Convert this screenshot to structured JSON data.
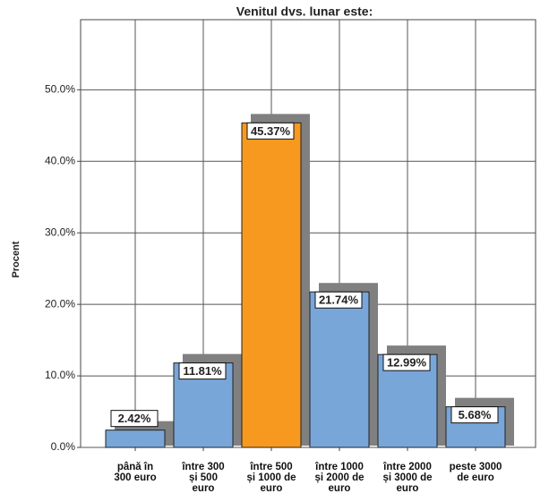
{
  "chart_data": {
    "type": "bar",
    "title": "Venitul dvs. lunar este:",
    "y_label": "Procent",
    "categories": [
      "până în\n300 euro",
      "între 300\nși 500\neuro",
      "între 500\nși 1000 de\neuro",
      "între 1000\nși 2000 de\neuro",
      "între 2000\nși 3000 de\neuro",
      "peste 3000\nde euro"
    ],
    "values": [
      2.42,
      11.81,
      45.37,
      21.74,
      12.99,
      5.68
    ],
    "value_labels": [
      "2.42%",
      "11.81%",
      "45.37%",
      "21.74%",
      "12.99%",
      "5.68%"
    ],
    "colors": [
      "#79a6d8",
      "#79a6d8",
      "#f7991f",
      "#79a6d8",
      "#79a6d8",
      "#79a6d8"
    ],
    "shadow_color": "#808080",
    "ylim": [
      0,
      59.8
    ],
    "yticks": [
      {
        "value": 0,
        "label": "0.0%"
      },
      {
        "value": 10,
        "label": "10.0%"
      },
      {
        "value": 20,
        "label": "20.0%"
      },
      {
        "value": 30,
        "label": "30.0%"
      },
      {
        "value": 40,
        "label": "40.0%"
      },
      {
        "value": 50,
        "label": "50.0%"
      }
    ],
    "grid": true
  }
}
